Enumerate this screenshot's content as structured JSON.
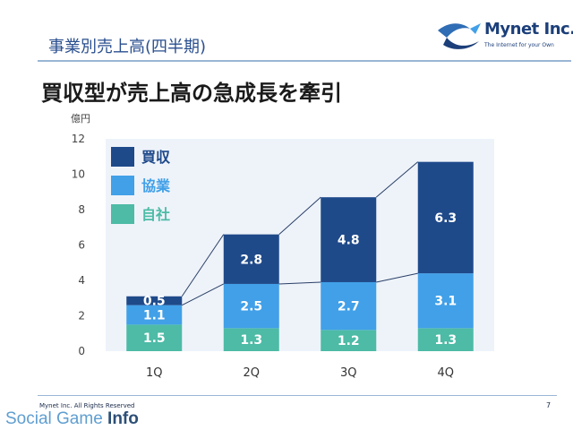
{
  "header": {
    "section_title": "事業別売上高(四半期)",
    "logo_name": "Mynet Inc.",
    "logo_tagline": "The Internet for your Own",
    "headline": "買収型が売上高の急成長を牽引"
  },
  "footer": {
    "copyright": "Mynet Inc. All Rights Reserved",
    "page_number": "7",
    "watermark_light": "Social Game ",
    "watermark_bold": "Info"
  },
  "colors": {
    "acquisition": "#1f4a8a",
    "partnership": "#41a0e8",
    "own": "#4dbba6",
    "plot_bg": "#eef3fa",
    "connector": "#2a3f66"
  },
  "chart_data": {
    "type": "bar",
    "stacked": true,
    "categories": [
      "1Q",
      "2Q",
      "3Q",
      "4Q"
    ],
    "series": [
      {
        "name": "自社",
        "values": [
          1.5,
          1.3,
          1.2,
          1.3
        ]
      },
      {
        "name": "協業",
        "values": [
          1.1,
          2.5,
          2.7,
          3.1
        ]
      },
      {
        "name": "買収",
        "values": [
          0.5,
          2.8,
          4.8,
          6.3
        ]
      }
    ],
    "ylabel": "億円",
    "ylim": [
      0,
      12
    ],
    "yticks": [
      0,
      2,
      4,
      6,
      8,
      10,
      12
    ],
    "legend_position": "top-left",
    "legend_order": [
      "買収",
      "協業",
      "自社"
    ],
    "grid": false
  }
}
